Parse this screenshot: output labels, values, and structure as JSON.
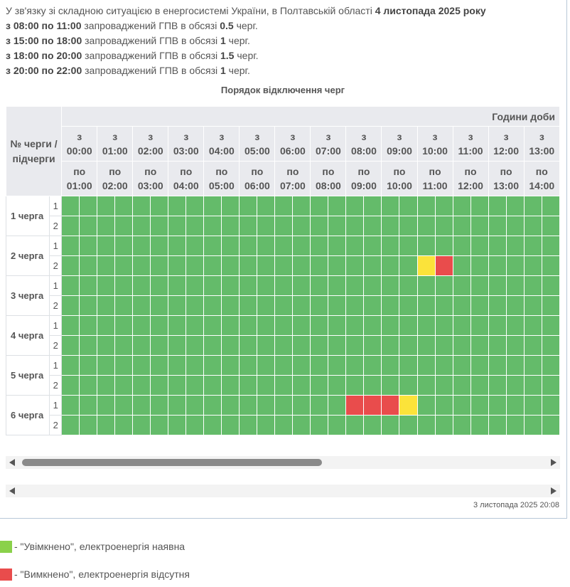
{
  "intro": {
    "l1_pre": "У зв'язку зі складною ситуацією в енергосистемі України, в Полтавській області ",
    "l1_bold": "4 листопада 2025 року",
    "lines": [
      {
        "time": "з 08:00 по 11:00",
        "text": " запроваджений ГПВ в обсязі ",
        "amount": "0.5",
        "unit": " черг."
      },
      {
        "time": "з 15:00 по 18:00",
        "text": " запроваджений ГПВ в обсязі ",
        "amount": "1",
        "unit": " черг."
      },
      {
        "time": "з 18:00 по 20:00",
        "text": " запроваджений ГПВ в обсязі ",
        "amount": "1.5",
        "unit": " черг."
      },
      {
        "time": "з 20:00 по 22:00",
        "text": " запроваджений ГПВ в обсязі ",
        "amount": "1",
        "unit": " черг."
      }
    ]
  },
  "table": {
    "title": "Порядок відключення черг",
    "corner_label": "№ черги / підчерги",
    "hours_title": "Години доби",
    "from_prefix": "з",
    "to_prefix": "по",
    "hours": [
      {
        "from": "00:00",
        "to": "01:00"
      },
      {
        "from": "01:00",
        "to": "02:00"
      },
      {
        "from": "02:00",
        "to": "03:00"
      },
      {
        "from": "03:00",
        "to": "04:00"
      },
      {
        "from": "04:00",
        "to": "05:00"
      },
      {
        "from": "05:00",
        "to": "06:00"
      },
      {
        "from": "06:00",
        "to": "07:00"
      },
      {
        "from": "07:00",
        "to": "08:00"
      },
      {
        "from": "08:00",
        "to": "09:00"
      },
      {
        "from": "09:00",
        "to": "10:00"
      },
      {
        "from": "10:00",
        "to": "11:00"
      },
      {
        "from": "11:00",
        "to": "12:00"
      },
      {
        "from": "12:00",
        "to": "13:00"
      },
      {
        "from": "13:00",
        "to": "14:00"
      }
    ],
    "queues": [
      {
        "label": "1 черга",
        "subs": [
          {
            "num": "1",
            "cells": "on*28"
          },
          {
            "num": "2",
            "cells": "on*28"
          }
        ]
      },
      {
        "label": "2 черга",
        "subs": [
          {
            "num": "1",
            "cells": "on*28"
          },
          {
            "num": "2",
            "overrides": {
              "20": "maybe",
              "21": "off"
            }
          }
        ]
      },
      {
        "label": "3 черга",
        "subs": [
          {
            "num": "1"
          },
          {
            "num": "2"
          }
        ]
      },
      {
        "label": "4 черга",
        "subs": [
          {
            "num": "1"
          },
          {
            "num": "2"
          }
        ]
      },
      {
        "label": "5 черга",
        "subs": [
          {
            "num": "1"
          },
          {
            "num": "2"
          }
        ]
      },
      {
        "label": "6 черга",
        "subs": [
          {
            "num": "1",
            "overrides": {
              "16": "off",
              "17": "off",
              "18": "off",
              "19": "maybe"
            }
          },
          {
            "num": "2"
          }
        ]
      }
    ]
  },
  "updated": "3 листопада 2025 20:08",
  "legend": [
    {
      "color": "#8ad14a",
      "text": "- \"Увімкнено\", електроенергія наявна"
    },
    {
      "color": "#e94c4c",
      "text": "- \"Вимкнено\", електроенергія відсутня"
    }
  ],
  "colors": {
    "on": "#64bb6a",
    "off": "#e94c4c",
    "maybe": "#fbe33a",
    "header_bg": "#e9eaee"
  }
}
